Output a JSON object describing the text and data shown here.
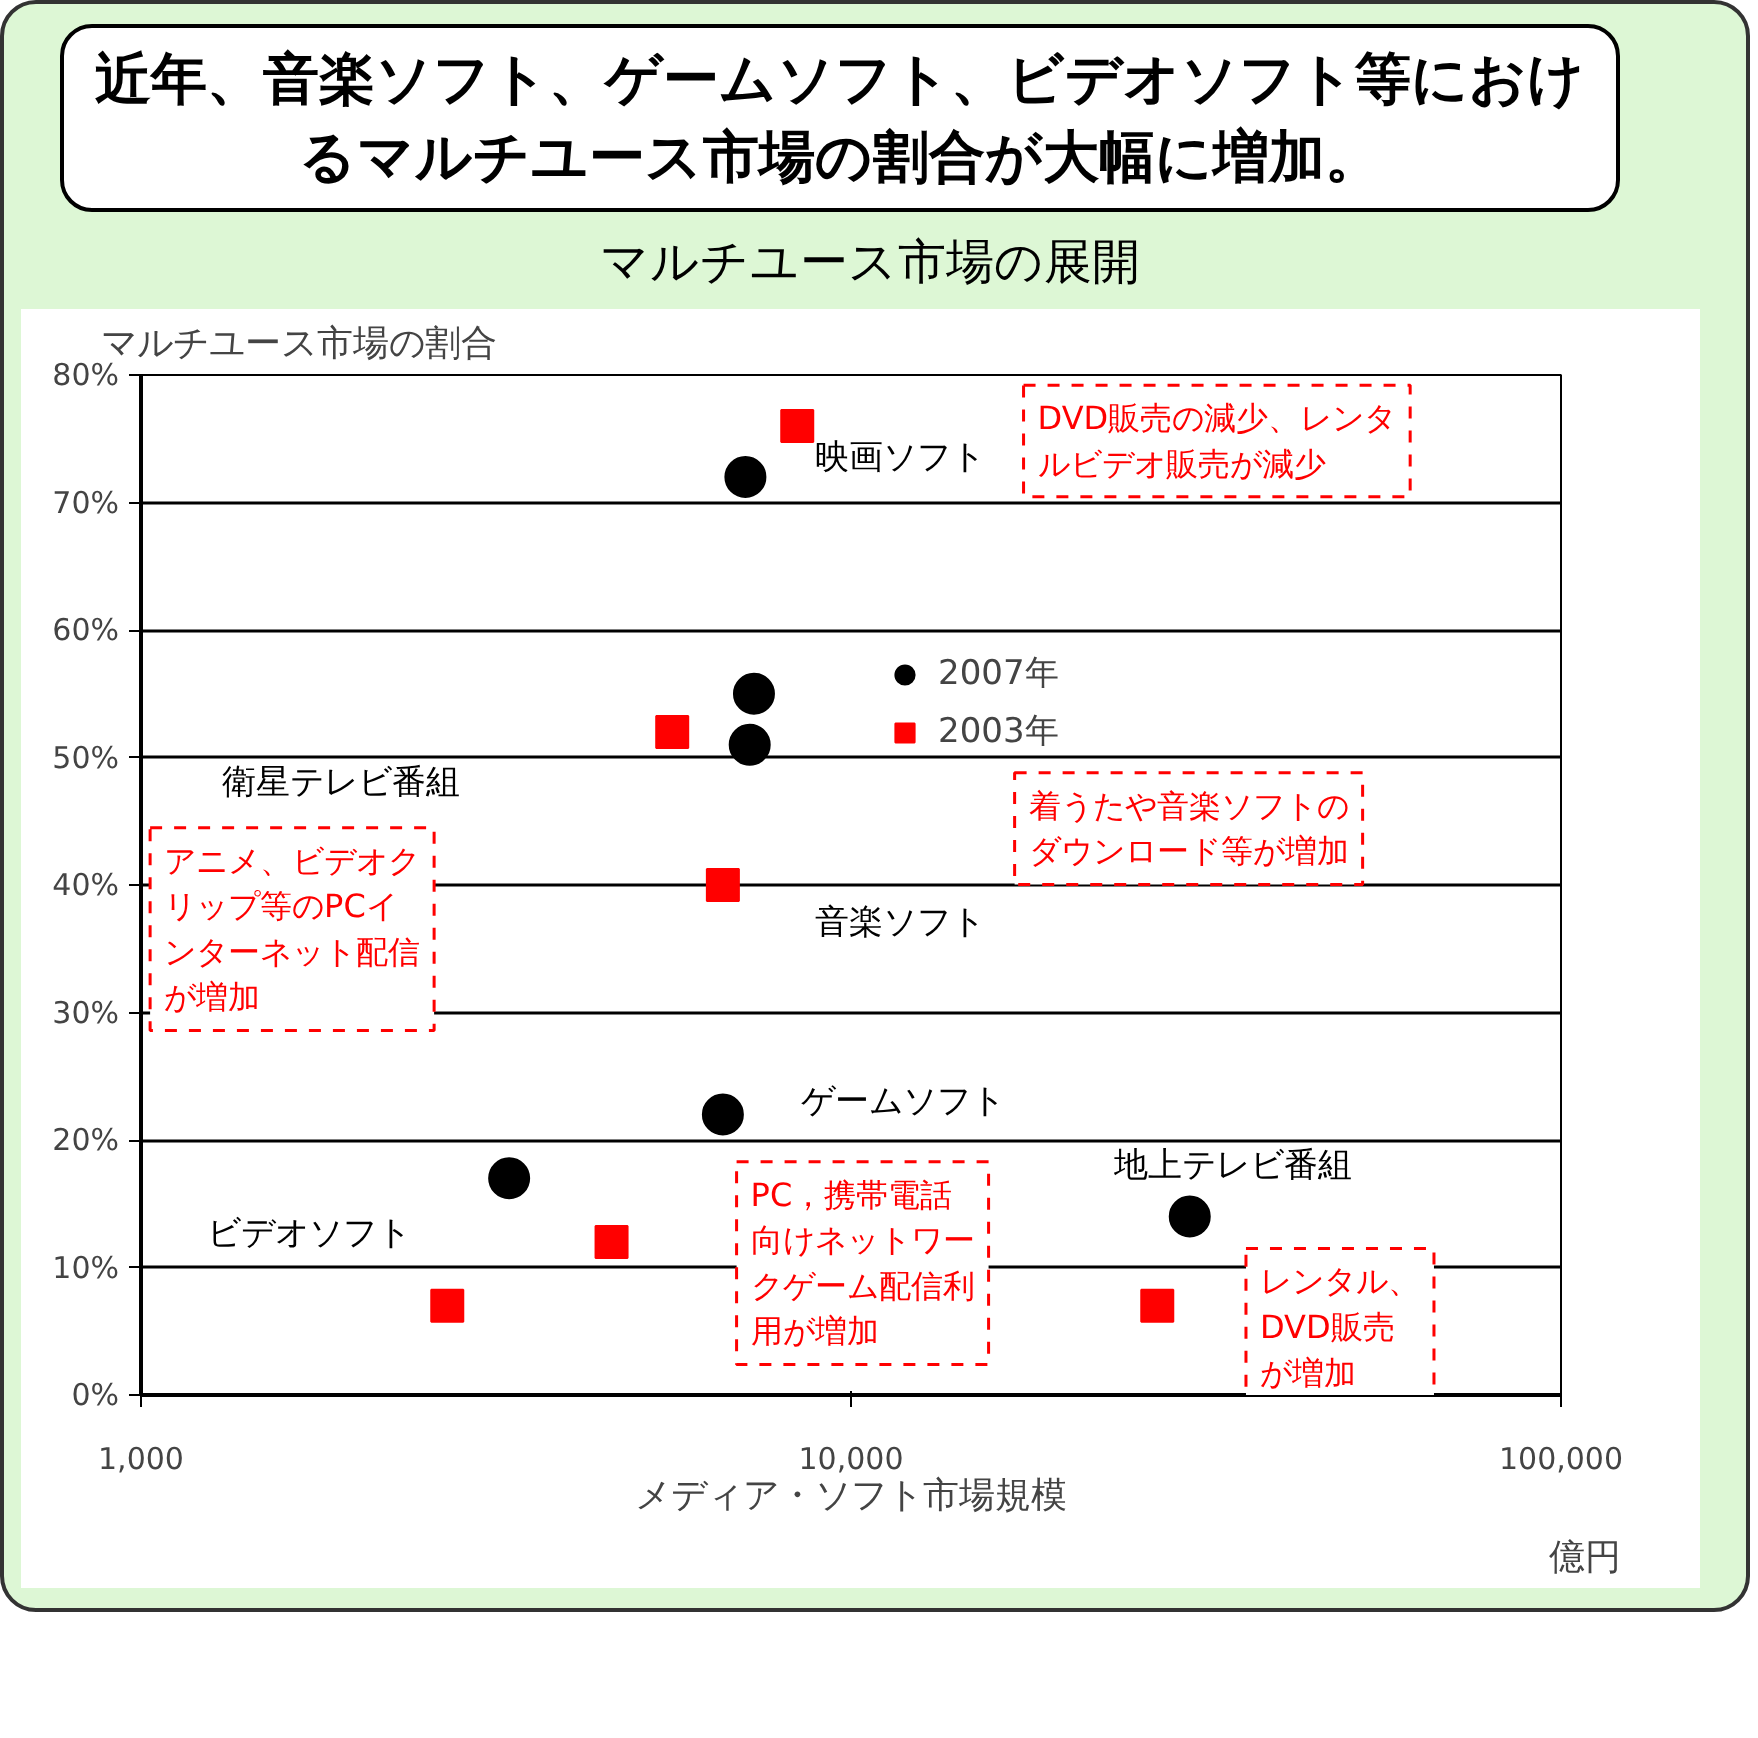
{
  "chart_data": {
    "type": "scatter",
    "title": "近年、音楽ソフト、ゲームソフト、ビデオソフト等におけるマルチユース市場の割合が大幅に増加。",
    "subtitle": "マルチユース市場の展開",
    "xlabel": "メディア・ソフト市場規模",
    "ylabel": "マルチユース市場の割合",
    "log": "x",
    "xlim": [
      1000,
      100000
    ],
    "xticks": [
      {
        "value": 1000,
        "label": "1,000"
      },
      {
        "value": 10000,
        "label": "10,000"
      },
      {
        "value": 100000,
        "label": "100,000"
      }
    ],
    "ylim": [
      0,
      80
    ],
    "yticks": [
      {
        "value": 0,
        "label": "0%"
      },
      {
        "value": 10,
        "label": "10%"
      },
      {
        "value": 20,
        "label": "20%"
      },
      {
        "value": 30,
        "label": "30%"
      },
      {
        "value": 40,
        "label": "40%"
      },
      {
        "value": 50,
        "label": "50%"
      },
      {
        "value": 60,
        "label": "60%"
      },
      {
        "value": 70,
        "label": "70%"
      },
      {
        "value": 80,
        "label": "80%"
      }
    ],
    "grid": "y",
    "legend": "top",
    "series": [
      {
        "name": "2007年",
        "color": "#000000",
        "marker": "circle",
        "x": [
          7100,
          7300,
          7200,
          6600,
          3300,
          30000
        ],
        "values": [
          72,
          55,
          51,
          22,
          17,
          14
        ]
      },
      {
        "name": "2003年",
        "color": "#ff0000",
        "marker": "square",
        "x": [
          8400,
          5600,
          6600,
          4600,
          2700,
          27000
        ],
        "values": [
          76,
          52,
          40,
          12,
          7,
          7
        ]
      }
    ],
    "annotations": [
      "映画ソフト",
      "衛星テレビ番組",
      "音楽ソフト",
      "ゲームソフト",
      "ビデオソフト",
      "地上テレビ番組",
      "DVD販売の減少、レンタルビデオ販売が減少",
      "着うたや音楽ソフトのダウンロード等が増加",
      "アニメ、ビデオクリップ等のPCインターネット配信が増加",
      "PC，携帯電話向けネットワークゲーム配信利用が増加",
      "レンタル、DVD販売が増加",
      "億円"
    ]
  }
}
